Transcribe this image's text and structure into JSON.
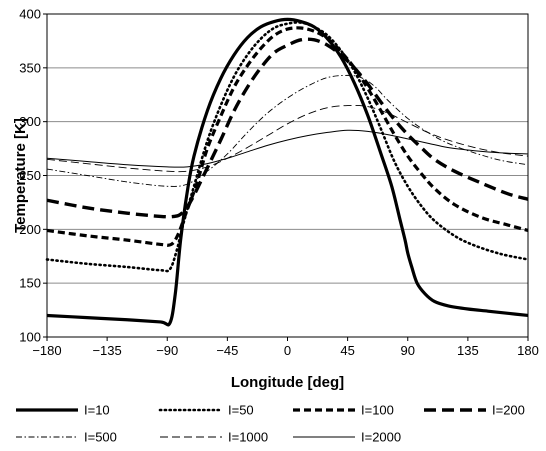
{
  "chart_data": {
    "type": "line",
    "title": "",
    "xlabel": "Longitude [deg]",
    "ylabel": "Temperature [K]",
    "xlim": [
      -180,
      180
    ],
    "ylim": [
      100,
      400
    ],
    "xticks": [
      -180,
      -135,
      -90,
      -45,
      0,
      45,
      90,
      135,
      180
    ],
    "xtick_labels": [
      "−180",
      "−135",
      "−90",
      "−45",
      "0",
      "45",
      "90",
      "135",
      "180"
    ],
    "yticks": [
      100,
      150,
      200,
      250,
      300,
      350,
      400
    ],
    "ytick_labels": [
      "100",
      "150",
      "200",
      "250",
      "300",
      "350",
      "400"
    ],
    "grid": "horizontal",
    "legend_position": "bottom",
    "line_color": "#000000",
    "series": [
      {
        "name": "I=10",
        "style": "solid-thick",
        "points": [
          [
            -180,
            120
          ],
          [
            -150,
            118
          ],
          [
            -120,
            116
          ],
          [
            -95,
            114
          ],
          [
            -88,
            113
          ],
          [
            -84,
            140
          ],
          [
            -80,
            190
          ],
          [
            -75,
            235
          ],
          [
            -70,
            268
          ],
          [
            -60,
            310
          ],
          [
            -50,
            340
          ],
          [
            -40,
            362
          ],
          [
            -30,
            378
          ],
          [
            -20,
            388
          ],
          [
            -10,
            393
          ],
          [
            0,
            395
          ],
          [
            10,
            393
          ],
          [
            20,
            388
          ],
          [
            30,
            377
          ],
          [
            40,
            360
          ],
          [
            50,
            336
          ],
          [
            60,
            306
          ],
          [
            70,
            270
          ],
          [
            78,
            240
          ],
          [
            84,
            210
          ],
          [
            88,
            190
          ],
          [
            90,
            178
          ],
          [
            93,
            165
          ],
          [
            97,
            150
          ],
          [
            103,
            140
          ],
          [
            110,
            133
          ],
          [
            120,
            129
          ],
          [
            135,
            126
          ],
          [
            150,
            124
          ],
          [
            165,
            122
          ],
          [
            180,
            120
          ]
        ]
      },
      {
        "name": "I=50",
        "style": "dotted",
        "points": [
          [
            -180,
            172
          ],
          [
            -150,
            168
          ],
          [
            -120,
            165
          ],
          [
            -95,
            162
          ],
          [
            -88,
            163
          ],
          [
            -83,
            180
          ],
          [
            -78,
            205
          ],
          [
            -70,
            240
          ],
          [
            -60,
            282
          ],
          [
            -50,
            315
          ],
          [
            -40,
            342
          ],
          [
            -30,
            362
          ],
          [
            -20,
            377
          ],
          [
            -10,
            387
          ],
          [
            0,
            391
          ],
          [
            10,
            392
          ],
          [
            20,
            388
          ],
          [
            30,
            380
          ],
          [
            40,
            366
          ],
          [
            50,
            347
          ],
          [
            60,
            322
          ],
          [
            70,
            293
          ],
          [
            80,
            263
          ],
          [
            90,
            240
          ],
          [
            100,
            222
          ],
          [
            110,
            208
          ],
          [
            125,
            194
          ],
          [
            140,
            185
          ],
          [
            160,
            177
          ],
          [
            180,
            172
          ]
        ]
      },
      {
        "name": "I=100",
        "style": "dashed-short",
        "points": [
          [
            -180,
            199
          ],
          [
            -150,
            194
          ],
          [
            -120,
            190
          ],
          [
            -95,
            186
          ],
          [
            -87,
            186
          ],
          [
            -82,
            195
          ],
          [
            -76,
            215
          ],
          [
            -68,
            242
          ],
          [
            -60,
            275
          ],
          [
            -50,
            305
          ],
          [
            -40,
            332
          ],
          [
            -30,
            352
          ],
          [
            -20,
            368
          ],
          [
            -10,
            380
          ],
          [
            0,
            386
          ],
          [
            10,
            387
          ],
          [
            20,
            384
          ],
          [
            30,
            377
          ],
          [
            40,
            365
          ],
          [
            50,
            350
          ],
          [
            60,
            331
          ],
          [
            70,
            310
          ],
          [
            80,
            288
          ],
          [
            90,
            268
          ],
          [
            100,
            252
          ],
          [
            110,
            238
          ],
          [
            125,
            223
          ],
          [
            145,
            211
          ],
          [
            165,
            204
          ],
          [
            180,
            199
          ]
        ]
      },
      {
        "name": "I=200",
        "style": "dashed-long",
        "points": [
          [
            -180,
            227
          ],
          [
            -150,
            220
          ],
          [
            -120,
            215
          ],
          [
            -95,
            212
          ],
          [
            -85,
            212
          ],
          [
            -79,
            215
          ],
          [
            -72,
            227
          ],
          [
            -62,
            252
          ],
          [
            -50,
            283
          ],
          [
            -40,
            310
          ],
          [
            -30,
            332
          ],
          [
            -20,
            350
          ],
          [
            -10,
            364
          ],
          [
            0,
            371
          ],
          [
            10,
            376
          ],
          [
            20,
            376
          ],
          [
            30,
            371
          ],
          [
            40,
            362
          ],
          [
            50,
            350
          ],
          [
            60,
            335
          ],
          [
            70,
            318
          ],
          [
            80,
            302
          ],
          [
            90,
            288
          ],
          [
            100,
            276
          ],
          [
            110,
            265
          ],
          [
            125,
            254
          ],
          [
            145,
            243
          ],
          [
            165,
            233
          ],
          [
            180,
            228
          ]
        ]
      },
      {
        "name": "I=500",
        "style": "dash-dot",
        "points": [
          [
            -180,
            256
          ],
          [
            -150,
            250
          ],
          [
            -120,
            244
          ],
          [
            -90,
            240
          ],
          [
            -75,
            242
          ],
          [
            -60,
            254
          ],
          [
            -45,
            270
          ],
          [
            -30,
            290
          ],
          [
            -15,
            308
          ],
          [
            0,
            322
          ],
          [
            15,
            333
          ],
          [
            30,
            341
          ],
          [
            45,
            343
          ],
          [
            55,
            341
          ],
          [
            65,
            333
          ],
          [
            75,
            320
          ],
          [
            90,
            303
          ],
          [
            105,
            290
          ],
          [
            120,
            280
          ],
          [
            140,
            271
          ],
          [
            160,
            264
          ],
          [
            180,
            260
          ]
        ]
      },
      {
        "name": "I=1000",
        "style": "dashed-thin",
        "points": [
          [
            -180,
            265
          ],
          [
            -150,
            261
          ],
          [
            -120,
            257
          ],
          [
            -90,
            254
          ],
          [
            -75,
            254
          ],
          [
            -60,
            258
          ],
          [
            -45,
            266
          ],
          [
            -30,
            276
          ],
          [
            -15,
            287
          ],
          [
            0,
            298
          ],
          [
            15,
            307
          ],
          [
            30,
            313
          ],
          [
            45,
            315
          ],
          [
            60,
            314
          ],
          [
            75,
            308
          ],
          [
            90,
            299
          ],
          [
            105,
            290
          ],
          [
            120,
            283
          ],
          [
            140,
            276
          ],
          [
            160,
            271
          ],
          [
            180,
            268
          ]
        ]
      },
      {
        "name": "I=2000",
        "style": "solid-thin",
        "points": [
          [
            -180,
            266
          ],
          [
            -150,
            263
          ],
          [
            -120,
            260
          ],
          [
            -90,
            258
          ],
          [
            -75,
            258
          ],
          [
            -60,
            261
          ],
          [
            -45,
            266
          ],
          [
            -30,
            272
          ],
          [
            -15,
            278
          ],
          [
            0,
            283
          ],
          [
            15,
            287
          ],
          [
            30,
            290
          ],
          [
            45,
            292
          ],
          [
            60,
            291
          ],
          [
            75,
            288
          ],
          [
            90,
            284
          ],
          [
            105,
            280
          ],
          [
            120,
            276
          ],
          [
            140,
            273
          ],
          [
            160,
            271
          ],
          [
            180,
            270
          ]
        ]
      }
    ]
  }
}
